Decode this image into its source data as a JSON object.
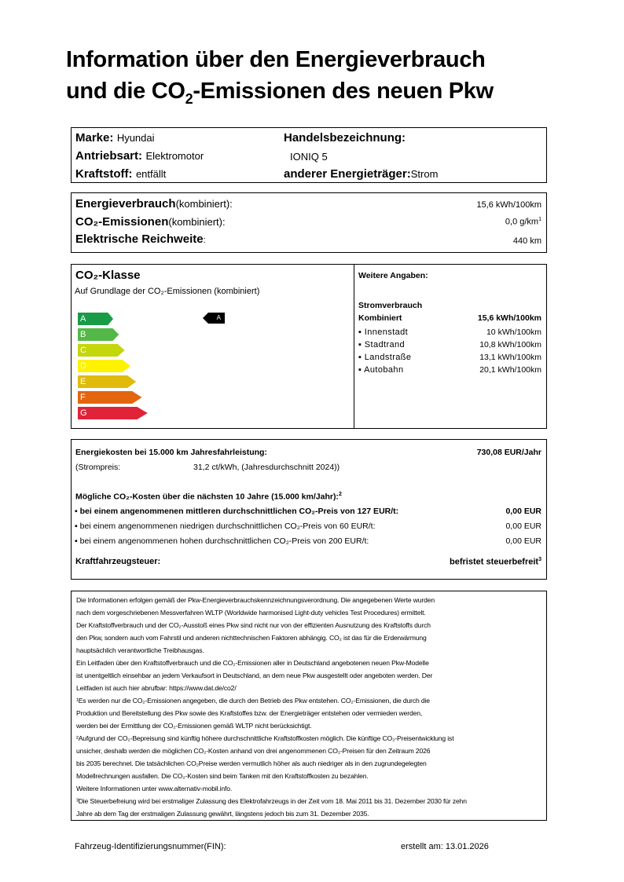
{
  "title": {
    "line1": "Information über den Energieverbrauch",
    "line2_a": "und die CO",
    "line2_sub": "2",
    "line2_b": "-Emissionen des neuen Pkw"
  },
  "vehicle": {
    "marke_label": "Marke:",
    "marke": "Hyundai",
    "antrieb_label": "Antriebsart:",
    "antrieb": "Elektromotor",
    "kraftstoff_label": "Kraftstoff:",
    "kraftstoff": "entfällt",
    "handel_label": "Handelsbezeichnung:",
    "handel": "IONIQ 5",
    "energietraeger_label": "anderer Energieträger:",
    "energietraeger": "Strom"
  },
  "consumption": {
    "energie_label": "Energieverbrauch",
    "energie_suffix": "(kombiniert):",
    "energie": "15,6 kWh/100km",
    "co2_label": "CO₂-Emissionen",
    "co2_suffix": "(kombiniert):",
    "co2": "0,0 g/km",
    "co2_sup": "1",
    "reichweite_label": "Elektrische Reichweite",
    "reichweite_suffix": ":",
    "reichweite": "440 km"
  },
  "co2class": {
    "title": "CO₂-Klasse",
    "subtitle": "Auf Grundlage der CO₂-Emissionen (kombiniert)",
    "classes": [
      "A",
      "B",
      "C",
      "D",
      "E",
      "F",
      "G"
    ],
    "colors": [
      "#1a9b48",
      "#54b848",
      "#c3d70a",
      "#fef200",
      "#e0bb0b",
      "#e3660f",
      "#e02339"
    ],
    "current": "A"
  },
  "weitere": {
    "title": "Weitere Angaben:",
    "strom_label": "Stromverbrauch",
    "kombiniert_label": "Kombiniert",
    "kombiniert": "15,6 kWh/100km",
    "items": [
      {
        "label": "Innenstadt",
        "value": "10 kWh/100km"
      },
      {
        "label": "Stadtrand",
        "value": "10,8 kWh/100km"
      },
      {
        "label": "Landstraße",
        "value": "13,1 kWh/100km"
      },
      {
        "label": "Autobahn",
        "value": "20,1 kWh/100km"
      }
    ]
  },
  "costs": {
    "energie_label": "Energiekosten bei 15.000 km Jahresfahrleistung:",
    "energie_value": "730,08 EUR/Jahr",
    "strompreis_label": "(Strompreis:",
    "strompreis": "31,2 ct/kWh, (Jahresdurchschnitt 2024))",
    "co2_title": "Mögliche CO₂-Kosten über die nächsten 10 Jahre (15.000 km/Jahr):",
    "co2_sup": "2",
    "rows": [
      {
        "label": "bei einem angenommenen mittleren durchschnittlichen CO₂-Preis von 127 EUR/t:",
        "value": "0,00 EUR"
      },
      {
        "label": "bei einem angenommenen niedrigen durchschnittlichen CO₂-Preis von  60 EUR/t:",
        "value": "0,00 EUR"
      },
      {
        "label": "bei einem angenommenen hohen durchschnittlichen CO₂-Preis von  200 EUR/t:",
        "value": "0,00 EUR"
      }
    ],
    "steuer_label": "Kraftfahrzeugsteuer:",
    "steuer_value": "befristet steuerbefreit",
    "steuer_sup": "3"
  },
  "footnotes": [
    "Die Informationen erfolgen gemäß der Pkw-Energieverbrauchskennzeichnungsverordnung. Die angegebenen Werte wurden",
    "nach dem vorgeschriebenen Messverfahren WLTP (Worldwide harmonised Light-duty vehicles Test Procedures) ermittelt.",
    "Der Kraftstoffverbrauch und der CO₂-Ausstoß eines Pkw sind nicht nur von der effizienten Ausnutzung des Kraftstoffs durch",
    "den Pkw, sondern auch vom Fahrstil und anderen nichttechnischen Faktoren abhängig. CO₂ ist das für die Erderwärmung",
    "hauptsächlich verantwortliche Treibhausgas.",
    "Ein Leitfaden über den Kraftstoffverbrauch und die CO₂-Emissionen aller in Deutschland angebotenen neuen Pkw-Modelle",
    "ist unentgeltlich einsehbar an jedem Verkaufsort in Deutschland, an dem neue Pkw ausgestellt oder angeboten werden. Der",
    "Leitfaden ist auch hier abrufbar: https://www.dat.de/co2/",
    "¹Es werden nur die CO₂-Emissionen angegeben, die durch den Betrieb des Pkw entstehen. CO₂-Emissionen, die durch die",
    "Produktion und Bereitstellung des Pkw sowie des Kraftstoffes bzw. der Energieträger entstehen oder vermieden werden,",
    "werden bei der Ermittlung der CO₂-Emissionen gemäß WLTP nicht berücksichtigt.",
    "²Aufgrund der CO₂-Bepreisung sind künftig höhere durchschnittliche Kraftstoffkosten möglich. Die künftige CO₂-Preisentwicklung ist",
    "unsicher, deshalb werden die möglichen CO₂-Kosten anhand von drei angenommenen CO₂-Preisen für den Zeitraum 2026",
    "bis 2035 berechnet. Die tatsächlichen CO₂Preise werden vermutlich höher als auch niedriger als in den zugrundegelegten",
    "Modellrechnungen ausfallen. Die CO₂-Kosten sind beim Tanken mit den Kraftstoffkosten zu bezahlen.",
    "Weitere Informationen unter www.alternativ-mobil.info.",
    "³Die Steuerbefreiung wird bei erstmaliger Zulassung des Elektrofahrzeugs in der Zeit vom 18. Mai 2011 bis 31. Dezember 2030 für zehn",
    "Jahre ab dem Tag der erstmaligen Zulassung gewährt, längstens jedoch bis zum 31. Dezember 2035."
  ],
  "footer": {
    "fin_label": "Fahrzeug-Identifizierungsnummer(FIN):",
    "erstellt": "erstellt am: 13.01.2026"
  }
}
